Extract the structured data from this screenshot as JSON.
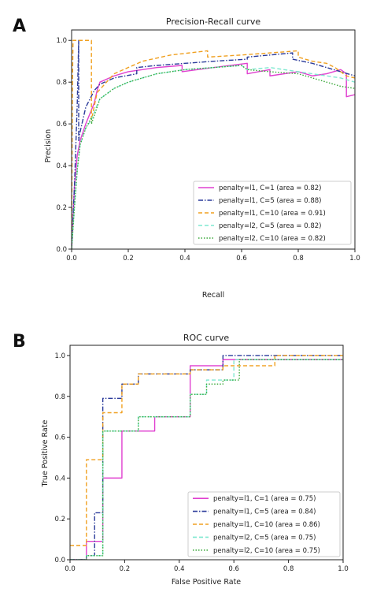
{
  "chart_data": [
    {
      "panel": "A",
      "type": "line",
      "title": "Precision-Recall curve",
      "xlabel": "Recall",
      "ylabel": "Precision",
      "xlim": [
        0,
        1
      ],
      "ylim": [
        0,
        1.05
      ],
      "xticks": [
        "0.0",
        "0.2",
        "0.4",
        "0.6",
        "0.8",
        "1.0"
      ],
      "yticks": [
        "0.0",
        "0.2",
        "0.4",
        "0.6",
        "0.8",
        "1.0"
      ],
      "legend_position": "lower-right",
      "grid": false,
      "series": [
        {
          "name": "penalty=l1, C=1 (area = 0.82)",
          "color": "#e040d0",
          "dash": "solid",
          "x": [
            0,
            0.005,
            0.01,
            0.02,
            0.03,
            0.05,
            0.08,
            0.09,
            0.1,
            0.15,
            0.2,
            0.3,
            0.39,
            0.39,
            0.5,
            0.62,
            0.62,
            0.7,
            0.7,
            0.8,
            0.85,
            0.9,
            0.95,
            0.97,
            0.97,
            1.0
          ],
          "y": [
            0,
            0.15,
            0.3,
            0.45,
            0.52,
            0.6,
            0.7,
            0.76,
            0.8,
            0.83,
            0.85,
            0.87,
            0.88,
            0.85,
            0.87,
            0.89,
            0.84,
            0.86,
            0.83,
            0.85,
            0.83,
            0.84,
            0.86,
            0.84,
            0.73,
            0.74
          ]
        },
        {
          "name": "penalty=l1, C=5 (area = 0.88)",
          "color": "#2a3a9a",
          "dash": "dashdot",
          "x": [
            0,
            0.01,
            0.02,
            0.025,
            0.025,
            0.028,
            0.05,
            0.08,
            0.1,
            0.15,
            0.23,
            0.23,
            0.3,
            0.4,
            0.5,
            0.62,
            0.62,
            0.7,
            0.78,
            0.78,
            0.85,
            0.9,
            0.95,
            1.0
          ],
          "y": [
            0.0,
            0.3,
            0.7,
            1.0,
            0.52,
            0.55,
            0.68,
            0.76,
            0.79,
            0.82,
            0.84,
            0.87,
            0.88,
            0.89,
            0.9,
            0.91,
            0.92,
            0.93,
            0.94,
            0.91,
            0.89,
            0.87,
            0.85,
            0.83
          ]
        },
        {
          "name": "penalty=l1, C=10 (area = 0.91)",
          "color": "#f0a020",
          "dash": "dashed",
          "x": [
            0,
            0.003,
            0.005,
            0.07,
            0.07,
            0.09,
            0.15,
            0.25,
            0.35,
            0.48,
            0.48,
            0.6,
            0.7,
            0.8,
            0.8,
            0.85,
            0.9,
            0.93,
            0.95,
            0.97,
            1.0
          ],
          "y": [
            0,
            0.8,
            1.0,
            1.0,
            0.62,
            0.75,
            0.84,
            0.9,
            0.93,
            0.95,
            0.92,
            0.93,
            0.94,
            0.95,
            0.92,
            0.9,
            0.89,
            0.87,
            0.85,
            0.83,
            0.82
          ]
        },
        {
          "name": "penalty=l2, C=5 (area = 0.82)",
          "color": "#7fe8d0",
          "dash": "dashed",
          "x": [
            0,
            0.01,
            0.02,
            0.03,
            0.05,
            0.07,
            0.09,
            0.1,
            0.15,
            0.2,
            0.3,
            0.4,
            0.5,
            0.6,
            0.62,
            0.7,
            0.8,
            0.85,
            0.9,
            0.95,
            1.0
          ],
          "y": [
            0,
            0.2,
            0.38,
            0.5,
            0.58,
            0.62,
            0.69,
            0.72,
            0.77,
            0.8,
            0.84,
            0.86,
            0.87,
            0.88,
            0.86,
            0.87,
            0.85,
            0.84,
            0.83,
            0.82,
            0.8
          ]
        },
        {
          "name": "penalty=l2, C=10 (area = 0.82)",
          "color": "#3aa83a",
          "dash": "dotted",
          "x": [
            0,
            0.01,
            0.02,
            0.03,
            0.05,
            0.07,
            0.07,
            0.09,
            0.1,
            0.15,
            0.2,
            0.3,
            0.4,
            0.5,
            0.6,
            0.62,
            0.7,
            0.8,
            0.85,
            0.9,
            0.95,
            1.0
          ],
          "y": [
            0,
            0.2,
            0.38,
            0.5,
            0.58,
            0.63,
            0.6,
            0.68,
            0.72,
            0.77,
            0.8,
            0.84,
            0.86,
            0.87,
            0.88,
            0.86,
            0.85,
            0.84,
            0.82,
            0.8,
            0.78,
            0.77
          ]
        }
      ]
    },
    {
      "panel": "B",
      "type": "line",
      "title": "ROC curve",
      "xlabel": "False Positive Rate",
      "ylabel": "True Positive Rate",
      "xlim": [
        0,
        1
      ],
      "ylim": [
        0,
        1.05
      ],
      "xticks": [
        "0.0",
        "0.2",
        "0.4",
        "0.6",
        "0.8",
        "1.0"
      ],
      "yticks": [
        "0.0",
        "0.2",
        "0.4",
        "0.6",
        "0.8",
        "1.0"
      ],
      "legend_position": "lower-right",
      "grid": false,
      "series": [
        {
          "name": "penalty=l1, C=1 (area = 0.75)",
          "color": "#e040d0",
          "dash": "solid",
          "x": [
            0,
            0.06,
            0.06,
            0.12,
            0.12,
            0.19,
            0.19,
            0.31,
            0.31,
            0.44,
            0.44,
            0.56,
            0.56,
            0.75,
            0.75,
            1.0
          ],
          "y": [
            0,
            0,
            0.09,
            0.09,
            0.4,
            0.4,
            0.63,
            0.63,
            0.7,
            0.7,
            0.95,
            0.95,
            0.98,
            0.98,
            0.98,
            0.98
          ]
        },
        {
          "name": "penalty=l1, C=5 (area = 0.84)",
          "color": "#2a3a9a",
          "dash": "dashdot",
          "x": [
            0,
            0.06,
            0.06,
            0.09,
            0.09,
            0.12,
            0.12,
            0.19,
            0.19,
            0.25,
            0.25,
            0.44,
            0.44,
            0.56,
            0.56,
            1.0
          ],
          "y": [
            0,
            0,
            0.02,
            0.02,
            0.23,
            0.23,
            0.79,
            0.79,
            0.86,
            0.86,
            0.91,
            0.91,
            0.93,
            0.93,
            1.0,
            1.0
          ]
        },
        {
          "name": "penalty=l1, C=10 (area = 0.86)",
          "color": "#f0a020",
          "dash": "dashed",
          "x": [
            0,
            0.06,
            0.06,
            0.12,
            0.12,
            0.19,
            0.19,
            0.25,
            0.25,
            0.44,
            0.44,
            0.56,
            0.56,
            0.75,
            0.75,
            1.0
          ],
          "y": [
            0.07,
            0.07,
            0.49,
            0.49,
            0.72,
            0.72,
            0.86,
            0.86,
            0.91,
            0.91,
            0.93,
            0.93,
            0.95,
            0.95,
            1.0,
            1.0
          ]
        },
        {
          "name": "penalty=l2, C=5 (area = 0.75)",
          "color": "#7fe8d0",
          "dash": "dashed",
          "x": [
            0,
            0.06,
            0.06,
            0.12,
            0.12,
            0.25,
            0.25,
            0.31,
            0.31,
            0.44,
            0.44,
            0.5,
            0.5,
            0.6,
            0.6,
            1.0
          ],
          "y": [
            0,
            0,
            0.02,
            0.02,
            0.63,
            0.63,
            0.7,
            0.7,
            0.7,
            0.7,
            0.81,
            0.81,
            0.88,
            0.88,
            0.98,
            0.98
          ]
        },
        {
          "name": "penalty=l2, C=10 (area = 0.75)",
          "color": "#3aa83a",
          "dash": "dotted",
          "x": [
            0,
            0.06,
            0.06,
            0.12,
            0.12,
            0.25,
            0.25,
            0.38,
            0.38,
            0.44,
            0.44,
            0.5,
            0.5,
            0.56,
            0.56,
            0.62,
            0.62,
            1.0
          ],
          "y": [
            0,
            0,
            0.02,
            0.02,
            0.63,
            0.63,
            0.7,
            0.7,
            0.7,
            0.7,
            0.81,
            0.81,
            0.86,
            0.86,
            0.88,
            0.88,
            0.98,
            0.98
          ]
        }
      ]
    }
  ]
}
